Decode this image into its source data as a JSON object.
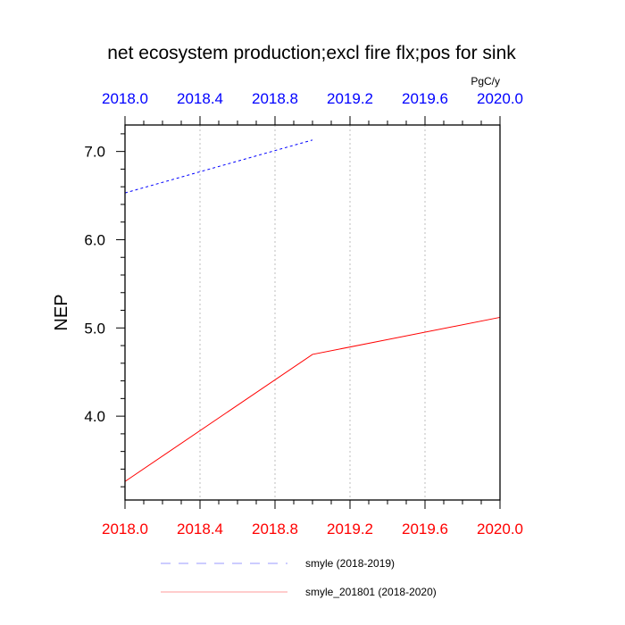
{
  "chart_data": {
    "type": "line",
    "title": "net ecosystem production;excl fire flx;pos for sink",
    "ylabel": "NEP",
    "units": "PgC/y",
    "ylim": [
      3.05,
      7.3
    ],
    "yticks": [
      {
        "value": 4.0,
        "label": "4.0"
      },
      {
        "value": 5.0,
        "label": "5.0"
      },
      {
        "value": 6.0,
        "label": "6.0"
      },
      {
        "value": 7.0,
        "label": "7.0"
      }
    ],
    "x_top": {
      "range": [
        2018.0,
        2020.0
      ],
      "color": "#0000ff",
      "ticks": [
        {
          "value": 2018.0,
          "label": "2018.0"
        },
        {
          "value": 2018.4,
          "label": "2018.4"
        },
        {
          "value": 2018.8,
          "label": "2018.8"
        },
        {
          "value": 2019.2,
          "label": "2019.2"
        },
        {
          "value": 2019.6,
          "label": "2019.6"
        },
        {
          "value": 2020.0,
          "label": "2020.0"
        }
      ]
    },
    "x_bottom": {
      "range": [
        2018.0,
        2020.0
      ],
      "color": "#ff0000",
      "ticks": [
        {
          "value": 2018.0,
          "label": "2018.0"
        },
        {
          "value": 2018.4,
          "label": "2018.4"
        },
        {
          "value": 2018.8,
          "label": "2018.8"
        },
        {
          "value": 2019.2,
          "label": "2019.2"
        },
        {
          "value": 2019.6,
          "label": "2019.6"
        },
        {
          "value": 2020.0,
          "label": "2020.0"
        }
      ]
    },
    "grid": "vertical dotted",
    "series": [
      {
        "name": "smyle (2018-2019)",
        "axis": "top",
        "color": "#0000ff",
        "dash": true,
        "x": [
          2018.0,
          2019.0
        ],
        "y": [
          6.53,
          7.13
        ]
      },
      {
        "name": "smyle_201801 (2018-2020)",
        "axis": "bottom",
        "color": "#ff0000",
        "dash": false,
        "x": [
          2018.0,
          2019.0,
          2020.0
        ],
        "y": [
          3.26,
          4.7,
          5.12
        ]
      }
    ],
    "legend_placement": "bottom"
  }
}
